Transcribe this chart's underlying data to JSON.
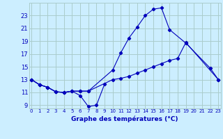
{
  "title": "Graphe des températures (°C)",
  "background_color": "#cceeff",
  "grid_color": "#aacccc",
  "line_color": "#0000bb",
  "hours": [
    0,
    1,
    2,
    3,
    4,
    5,
    6,
    7,
    8,
    9,
    10,
    11,
    12,
    13,
    14,
    15,
    16,
    17,
    18,
    19,
    20,
    21,
    22,
    23
  ],
  "curve_min_x": [
    0,
    1,
    2,
    3,
    4,
    5,
    6,
    7,
    8,
    9
  ],
  "curve_min_y": [
    13.0,
    12.2,
    11.8,
    11.1,
    11.0,
    11.2,
    10.5,
    8.8,
    9.0,
    12.3
  ],
  "curve_max_x": [
    0,
    1,
    2,
    3,
    4,
    5,
    6,
    7,
    10,
    11,
    12,
    13,
    14,
    15,
    16,
    17,
    19,
    22,
    23
  ],
  "curve_max_y": [
    13.0,
    12.2,
    11.8,
    11.1,
    11.0,
    11.2,
    11.2,
    11.2,
    14.5,
    17.2,
    19.5,
    21.2,
    23.0,
    24.0,
    24.2,
    20.8,
    18.7,
    14.8,
    13.0
  ],
  "curve_avg_x": [
    0,
    1,
    2,
    3,
    4,
    5,
    6,
    7,
    10,
    11,
    12,
    13,
    14,
    15,
    16,
    17,
    18,
    19,
    23
  ],
  "curve_avg_y": [
    13.0,
    12.2,
    11.8,
    11.1,
    11.0,
    11.2,
    11.2,
    11.2,
    13.0,
    13.2,
    13.5,
    14.0,
    14.5,
    15.0,
    15.5,
    16.0,
    16.3,
    18.8,
    13.0
  ],
  "ylim": [
    8.5,
    25.0
  ],
  "yticks": [
    9,
    11,
    13,
    15,
    17,
    19,
    21,
    23
  ],
  "xlim": [
    -0.3,
    23.3
  ],
  "xtick_fontsize": 5.0,
  "ytick_fontsize": 6.0,
  "xlabel_fontsize": 6.5
}
